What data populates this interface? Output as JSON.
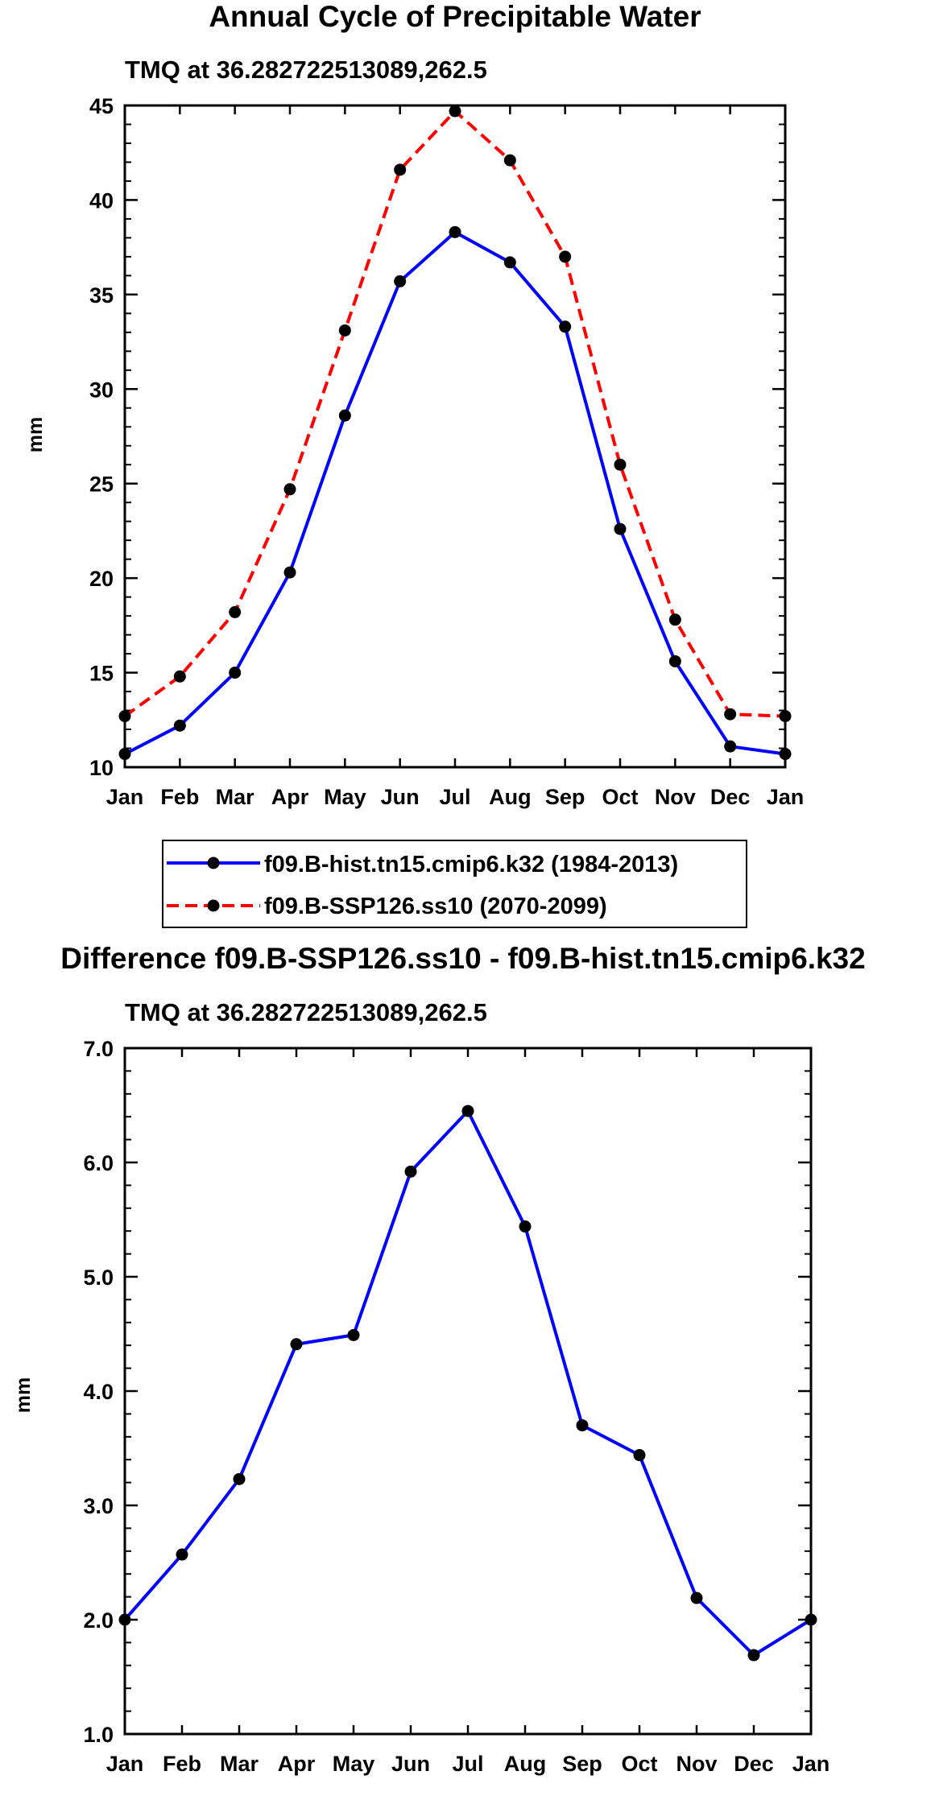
{
  "colors": {
    "hist": "#0000ff",
    "ssp": "#ff0000",
    "marker": "#000000",
    "axis": "#000000"
  },
  "chart_data": [
    {
      "type": "line",
      "title": "Annual Cycle of Precipitable Water",
      "subtitle": "TMQ at 36.282722513089,262.5",
      "xlabel": "",
      "ylabel": "mm",
      "categories": [
        "Jan",
        "Feb",
        "Mar",
        "Apr",
        "May",
        "Jun",
        "Jul",
        "Aug",
        "Sep",
        "Oct",
        "Nov",
        "Dec",
        "Jan"
      ],
      "ylim": [
        10,
        45
      ],
      "yticks": [
        10,
        15,
        20,
        25,
        30,
        35,
        40,
        45
      ],
      "ytick_labels": [
        "10",
        "15",
        "20",
        "25",
        "30",
        "35",
        "40",
        "45"
      ],
      "yminor_step": 1,
      "series": [
        {
          "name": "f09.B-hist.tn15.cmip6.k32 (1984-2013)",
          "color": "#0000ff",
          "dashed": false,
          "values": [
            10.7,
            12.2,
            15.0,
            20.3,
            28.6,
            35.7,
            38.3,
            36.7,
            33.3,
            22.6,
            15.6,
            11.1,
            10.7
          ]
        },
        {
          "name": "f09.B-SSP126.ss10 (2070-2099)",
          "color": "#ff0000",
          "dashed": true,
          "values": [
            12.7,
            14.8,
            18.2,
            24.7,
            33.1,
            41.6,
            44.7,
            42.1,
            37.0,
            26.0,
            17.8,
            12.8,
            12.7
          ]
        }
      ],
      "legend": {
        "placement": "below"
      }
    },
    {
      "type": "line",
      "title": "Difference f09.B-SSP126.ss10 - f09.B-hist.tn15.cmip6.k32",
      "subtitle": "TMQ at 36.282722513089,262.5",
      "xlabel": "",
      "ylabel": "mm",
      "categories": [
        "Jan",
        "Feb",
        "Mar",
        "Apr",
        "May",
        "Jun",
        "Jul",
        "Aug",
        "Sep",
        "Oct",
        "Nov",
        "Dec",
        "Jan"
      ],
      "ylim": [
        1.0,
        7.0
      ],
      "yticks": [
        1.0,
        2.0,
        3.0,
        4.0,
        5.0,
        6.0,
        7.0
      ],
      "ytick_labels": [
        "1.0",
        "2.0",
        "3.0",
        "4.0",
        "5.0",
        "6.0",
        "7.0"
      ],
      "yminor_step": 0.2,
      "series": [
        {
          "name": "Difference",
          "color": "#0000ff",
          "dashed": false,
          "values": [
            2.0,
            2.57,
            3.23,
            4.41,
            4.49,
            5.92,
            6.45,
            5.44,
            3.7,
            3.44,
            2.19,
            1.69,
            2.0
          ]
        }
      ]
    }
  ]
}
